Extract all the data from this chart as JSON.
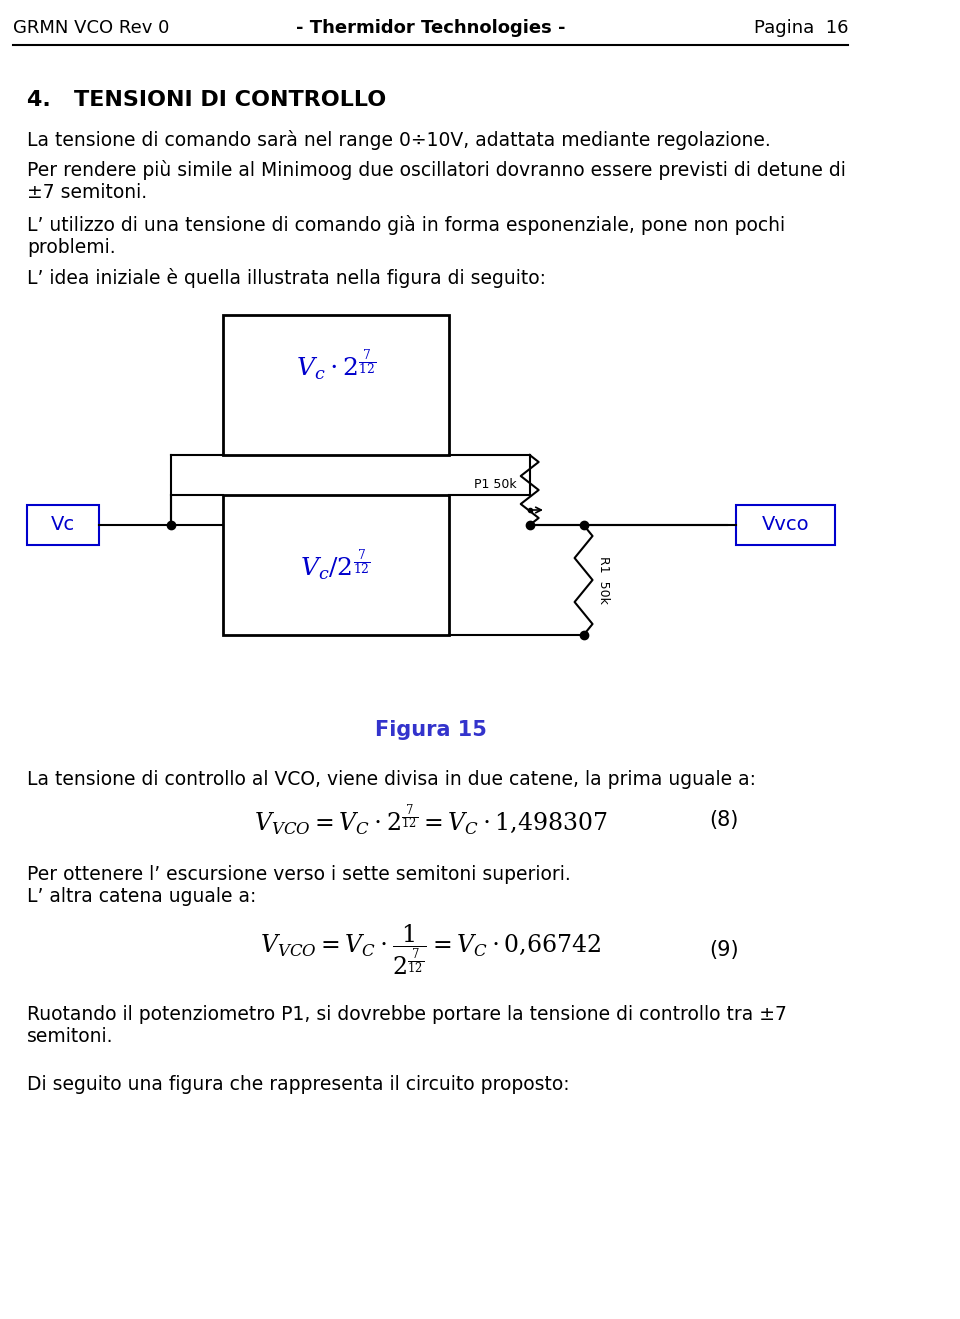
{
  "header_left": "GRMN VCO Rev 0",
  "header_center": "- Thermidor Technologies -",
  "header_right": "Pagina  16",
  "section_title": "4.   TENSIONI DI CONTROLLO",
  "para1": "La tensione di comando sarà nel range 0÷10V, adattata mediante regolazione.",
  "para2": "Per rendere più simile al Minimoog due oscillatori dovranno essere previsti di detune di\n±7 semitoni.",
  "para3": "L’ utilizzo di una tensione di comando già in forma esponenziale, pone non pochi\nproblemi.",
  "para4": "L’ idea iniziale è quella illustrata nella figura di seguito:",
  "figura_label": "Figura 15",
  "para5": "La tensione di controllo al VCO, viene divisa in due catene, la prima uguale a:",
  "para6": "Per ottenere l’ escursione verso i sette semitoni superiori.\nL’ altra catena uguale a:",
  "para7": "Ruotando il potenziometro P1, si dovrebbe portare la tensione di controllo tra ±7\nsemitoni.",
  "para8": "Di seguito una figura che rappresenta il circuito proposto:",
  "bg_color": "#ffffff",
  "text_color": "#000000",
  "header_line_color": "#000000",
  "blue_color": "#0000cc",
  "box_color": "#000000",
  "box_fill": "#ffffff",
  "figure_blue": "#3333cc"
}
